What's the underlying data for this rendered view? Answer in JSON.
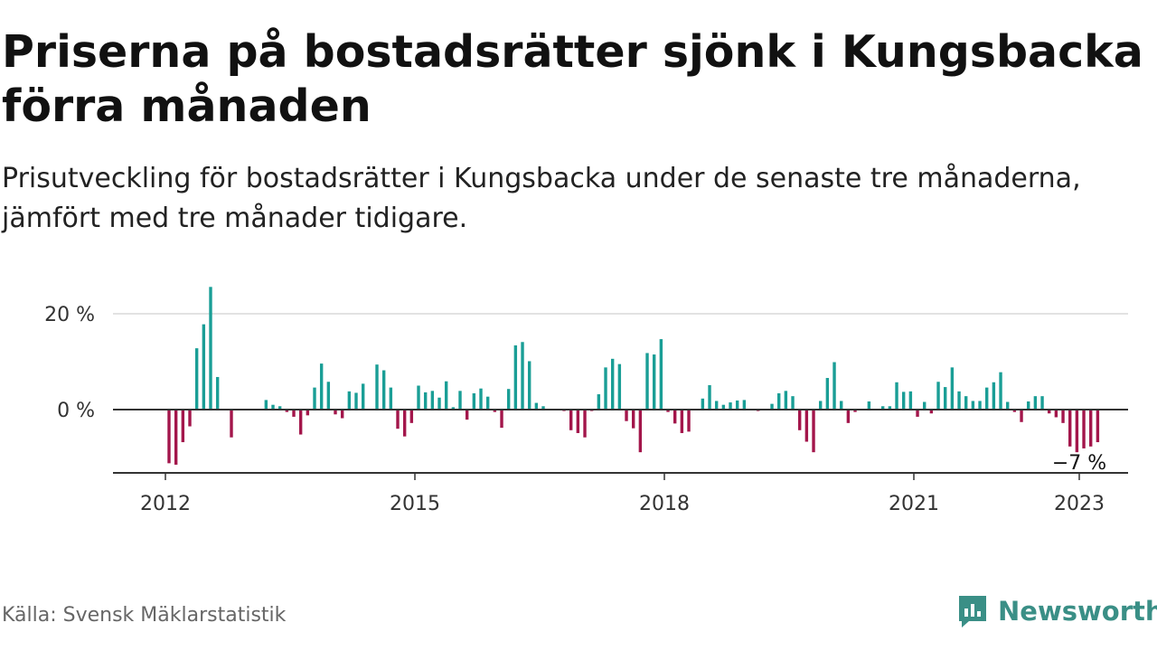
{
  "title": "Priserna på bostadsrätter sjönk i Kungsbacka förra månaden",
  "subtitle": "Prisutveckling för bostadsrätter i Kungsbacka under de senaste tre månaderna, jämfört med tre månader tidigare.",
  "source": "Källa: Svensk Mäklarstatistik",
  "brand": {
    "name": "Newsworthy",
    "logo_icon": "newsworthy-logo-icon",
    "color": "#3a8f86"
  },
  "chart_data": {
    "type": "bar",
    "title": "Priserna på bostadsrätter sjönk i Kungsbacka förra månaden",
    "subtitle": "Prisutveckling för bostadsrätter i Kungsbacka under de senaste tre månaderna, jämfört med tre månader tidigare.",
    "x_start": "2012-01",
    "x_ticks": [
      "2012",
      "2015",
      "2018",
      "2021",
      "2023"
    ],
    "y_ticks": [
      "20 %",
      "0 %"
    ],
    "ylim": [
      -13,
      26
    ],
    "grid": true,
    "colors": {
      "positive": "#1a9e96",
      "negative": "#a3164b"
    },
    "annotation": {
      "label": "−7 %"
    },
    "values": [
      -11.2,
      -11.5,
      -6.8,
      -3.5,
      12.8,
      17.8,
      25.6,
      6.8,
      0,
      -5.8,
      0,
      0,
      0,
      0,
      2,
      1,
      0.7,
      -0.5,
      -1.5,
      -5.2,
      -1.2,
      4.6,
      9.6,
      5.8,
      -1,
      -1.8,
      3.8,
      3.5,
      5.4,
      0,
      9.4,
      8.2,
      4.6,
      -4,
      -5.6,
      -2.8,
      5,
      3.6,
      3.9,
      2.5,
      5.9,
      0.5,
      3.9,
      -2.1,
      3.4,
      4.4,
      2.7,
      -0.5,
      -3.8,
      4.3,
      13.4,
      14.1,
      10.1,
      1.4,
      0.7,
      0,
      0,
      -0.3,
      -4.3,
      -4.9,
      -5.8,
      -0.3,
      3.2,
      8.8,
      10.6,
      9.5,
      -2.4,
      -3.9,
      -8.9,
      11.8,
      11.5,
      14.7,
      -0.5,
      -2.9,
      -4.9,
      -4.6,
      0,
      2.3,
      5.1,
      1.8,
      1,
      1.5,
      1.9,
      2,
      0,
      -0.3,
      0,
      1.2,
      3.4,
      3.9,
      2.8,
      -4.3,
      -6.7,
      -8.9,
      1.8,
      6.6,
      9.9,
      1.8,
      -2.8,
      -0.5,
      0,
      1.7,
      0,
      0.7,
      0.7,
      5.7,
      3.7,
      3.8,
      -1.5,
      1.6,
      -0.8,
      5.8,
      4.7,
      8.8,
      3.8,
      2.8,
      1.8,
      1.8,
      4.6,
      5.7,
      7.8,
      1.6,
      -0.5,
      -2.6,
      1.7,
      2.8,
      2.8,
      -0.8,
      -1.6,
      -2.8,
      -7.7,
      -8.9,
      -8.1,
      -7.7,
      -6.8
    ]
  }
}
